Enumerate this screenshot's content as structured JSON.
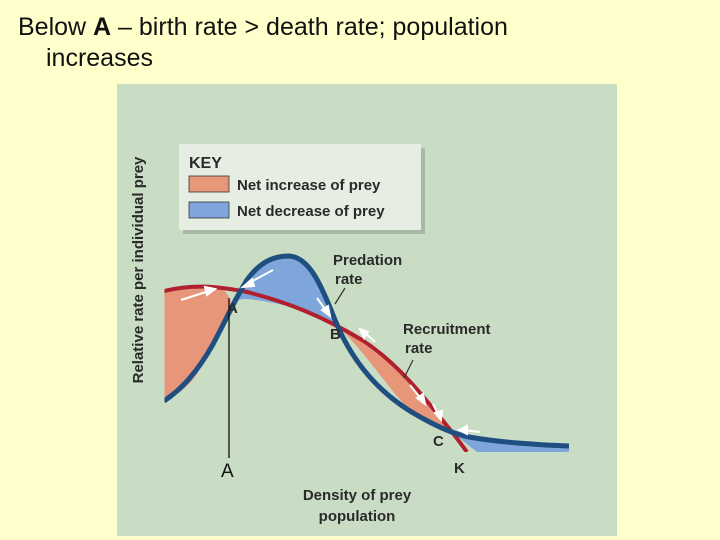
{
  "heading": {
    "prefix": "Below ",
    "bold": "A",
    "rest": " – birth rate > death rate; population",
    "line2": "increases"
  },
  "figure": {
    "y_axis_label": "Relative rate per individual prey",
    "x_axis_label_line1": "Density of prey",
    "x_axis_label_line2": "population",
    "key": {
      "title": "KEY",
      "items": [
        {
          "label": "Net increase of prey",
          "color": "#e8967a"
        },
        {
          "label": "Net decrease of prey",
          "color": "#7fa6db"
        }
      ]
    },
    "curves": {
      "predation_line1": "Predation",
      "predation_line2": "rate",
      "recruitment_line1": "Recruitment",
      "recruitment_line2": "rate",
      "predation_color": "#1f4e80",
      "recruitment_color": "#b0202e"
    },
    "points": {
      "a": "A",
      "b": "B",
      "c": "C",
      "k": "K",
      "a_marker": "A"
    }
  }
}
